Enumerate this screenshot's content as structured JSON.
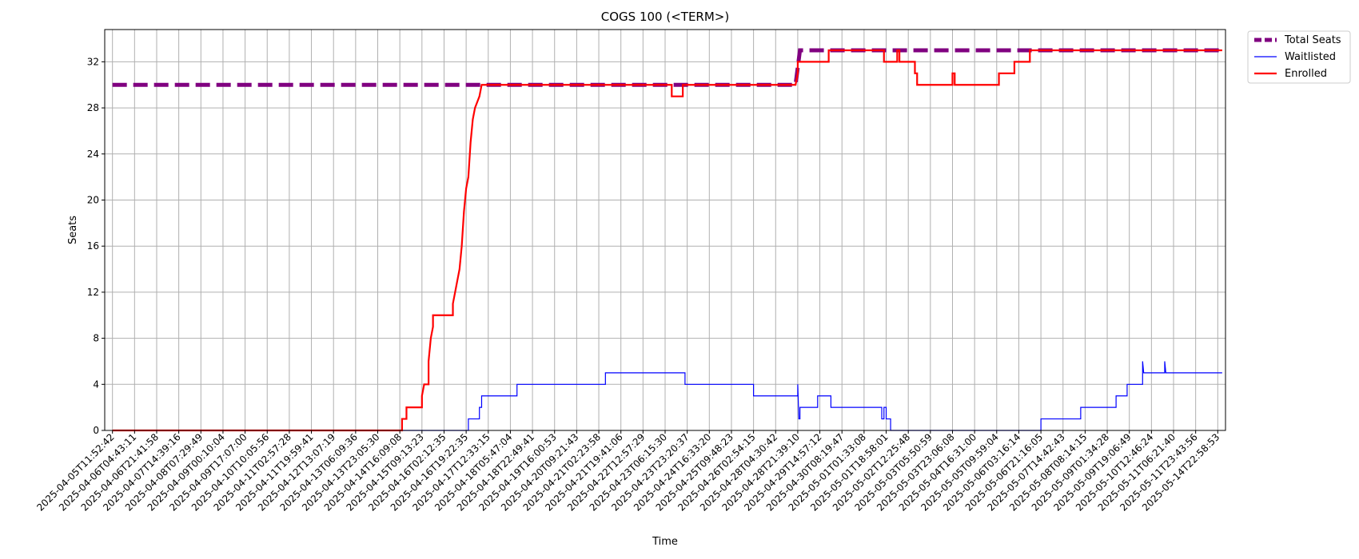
{
  "chart_data": {
    "type": "line",
    "title": "COGS 100 (<TERM>)",
    "xlabel": "Time",
    "ylabel": "Seats",
    "ylim": [
      0,
      34.8
    ],
    "yticks": [
      0,
      4,
      8,
      12,
      16,
      20,
      24,
      28,
      32
    ],
    "grid": true,
    "legend_position": "outside-top-right",
    "x_ticks": [
      "2025-04-05T11:52:42",
      "2025-04-06T04:43:11",
      "2025-04-06T21:41:58",
      "2025-04-07T14:39:16",
      "2025-04-08T07:29:49",
      "2025-04-09T00:10:04",
      "2025-04-09T17:07:00",
      "2025-04-10T10:05:56",
      "2025-04-11T02:57:28",
      "2025-04-11T19:59:41",
      "2025-04-12T13:07:19",
      "2025-04-13T06:09:36",
      "2025-04-13T23:05:30",
      "2025-04-14T16:09:08",
      "2025-04-15T09:13:23",
      "2025-04-16T02:12:35",
      "2025-04-16T19:22:35",
      "2025-04-17T12:33:15",
      "2025-04-18T05:47:04",
      "2025-04-18T22:49:41",
      "2025-04-19T16:00:53",
      "2025-04-20T09:21:43",
      "2025-04-21T02:23:58",
      "2025-04-21T19:41:06",
      "2025-04-22T12:57:29",
      "2025-04-23T06:15:30",
      "2025-04-23T23:20:37",
      "2025-04-24T16:33:20",
      "2025-04-25T09:48:23",
      "2025-04-26T02:54:15",
      "2025-04-28T04:30:42",
      "2025-04-28T21:39:10",
      "2025-04-29T14:57:12",
      "2025-04-30T08:19:47",
      "2025-05-01T01:33:08",
      "2025-05-01T18:58:01",
      "2025-05-02T12:25:48",
      "2025-05-03T05:50:59",
      "2025-05-03T23:06:08",
      "2025-05-04T16:31:00",
      "2025-05-05T09:59:04",
      "2025-05-06T03:16:14",
      "2025-05-06T21:16:05",
      "2025-05-07T14:42:43",
      "2025-05-08T08:14:15",
      "2025-05-09T01:34:28",
      "2025-05-09T19:06:49",
      "2025-05-10T12:46:24",
      "2025-05-11T06:21:40",
      "2025-05-11T23:43:56",
      "2025-05-14T22:58:53"
    ],
    "series": [
      {
        "name": "Total Seats",
        "color": "#800080",
        "style": "dashed",
        "points": [
          [
            0,
            30
          ],
          [
            30.9,
            30
          ],
          [
            30.9,
            30
          ],
          [
            31.1,
            33
          ],
          [
            50.2,
            33
          ]
        ]
      },
      {
        "name": "Waitlisted",
        "color": "#0000ff",
        "style": "solid",
        "points": [
          [
            0,
            0
          ],
          [
            16.1,
            0
          ],
          [
            16.1,
            1
          ],
          [
            16.6,
            1
          ],
          [
            16.6,
            2
          ],
          [
            16.7,
            2
          ],
          [
            16.7,
            3
          ],
          [
            18.3,
            3
          ],
          [
            18.3,
            4
          ],
          [
            22.3,
            4
          ],
          [
            22.3,
            5
          ],
          [
            25.9,
            5
          ],
          [
            25.9,
            4
          ],
          [
            29.0,
            4
          ],
          [
            29.0,
            3
          ],
          [
            31.0,
            3
          ],
          [
            31.0,
            4
          ],
          [
            31.05,
            1
          ],
          [
            31.1,
            1
          ],
          [
            31.1,
            2
          ],
          [
            31.9,
            2
          ],
          [
            31.9,
            3
          ],
          [
            32.5,
            3
          ],
          [
            32.5,
            2
          ],
          [
            34.8,
            2
          ],
          [
            34.8,
            1
          ],
          [
            34.9,
            1
          ],
          [
            34.9,
            2
          ],
          [
            35.0,
            2
          ],
          [
            35.0,
            1
          ],
          [
            35.2,
            1
          ],
          [
            35.2,
            0
          ],
          [
            42.0,
            0
          ],
          [
            42.0,
            1
          ],
          [
            43.8,
            1
          ],
          [
            43.8,
            2
          ],
          [
            45.4,
            2
          ],
          [
            45.4,
            3
          ],
          [
            45.9,
            3
          ],
          [
            45.9,
            4
          ],
          [
            46.6,
            4
          ],
          [
            46.6,
            6
          ],
          [
            46.65,
            5
          ],
          [
            47.6,
            5
          ],
          [
            47.6,
            6
          ],
          [
            47.65,
            5
          ],
          [
            50.2,
            5
          ]
        ]
      },
      {
        "name": "Enrolled",
        "color": "#ff0000",
        "style": "solid",
        "points": [
          [
            0,
            0
          ],
          [
            13.1,
            0
          ],
          [
            13.1,
            1
          ],
          [
            13.3,
            1
          ],
          [
            13.3,
            2
          ],
          [
            14.0,
            2
          ],
          [
            14.0,
            3
          ],
          [
            14.1,
            4
          ],
          [
            14.3,
            4
          ],
          [
            14.3,
            6
          ],
          [
            14.4,
            8
          ],
          [
            14.5,
            9
          ],
          [
            14.5,
            10
          ],
          [
            15.4,
            10
          ],
          [
            15.4,
            11
          ],
          [
            15.5,
            12
          ],
          [
            15.6,
            13
          ],
          [
            15.7,
            14
          ],
          [
            15.8,
            16
          ],
          [
            15.9,
            19
          ],
          [
            16.0,
            21
          ],
          [
            16.1,
            22
          ],
          [
            16.2,
            25
          ],
          [
            16.3,
            27
          ],
          [
            16.4,
            28
          ],
          [
            16.6,
            29
          ],
          [
            16.7,
            30
          ],
          [
            25.3,
            30
          ],
          [
            25.3,
            29
          ],
          [
            25.8,
            29
          ],
          [
            25.8,
            30
          ],
          [
            30.9,
            30
          ],
          [
            30.9,
            30
          ],
          [
            31.0,
            31
          ],
          [
            31.0,
            32
          ],
          [
            32.4,
            32
          ],
          [
            32.4,
            33
          ],
          [
            34.9,
            33
          ],
          [
            34.9,
            32
          ],
          [
            35.5,
            32
          ],
          [
            35.5,
            33
          ],
          [
            35.6,
            33
          ],
          [
            35.6,
            32
          ],
          [
            36.3,
            32
          ],
          [
            36.3,
            31
          ],
          [
            36.4,
            31
          ],
          [
            36.4,
            30
          ],
          [
            38.0,
            30
          ],
          [
            38.0,
            31
          ],
          [
            38.1,
            31
          ],
          [
            38.1,
            30
          ],
          [
            40.1,
            30
          ],
          [
            40.1,
            31
          ],
          [
            40.8,
            31
          ],
          [
            40.8,
            32
          ],
          [
            41.5,
            32
          ],
          [
            41.5,
            33
          ],
          [
            50.2,
            33
          ]
        ]
      }
    ]
  }
}
